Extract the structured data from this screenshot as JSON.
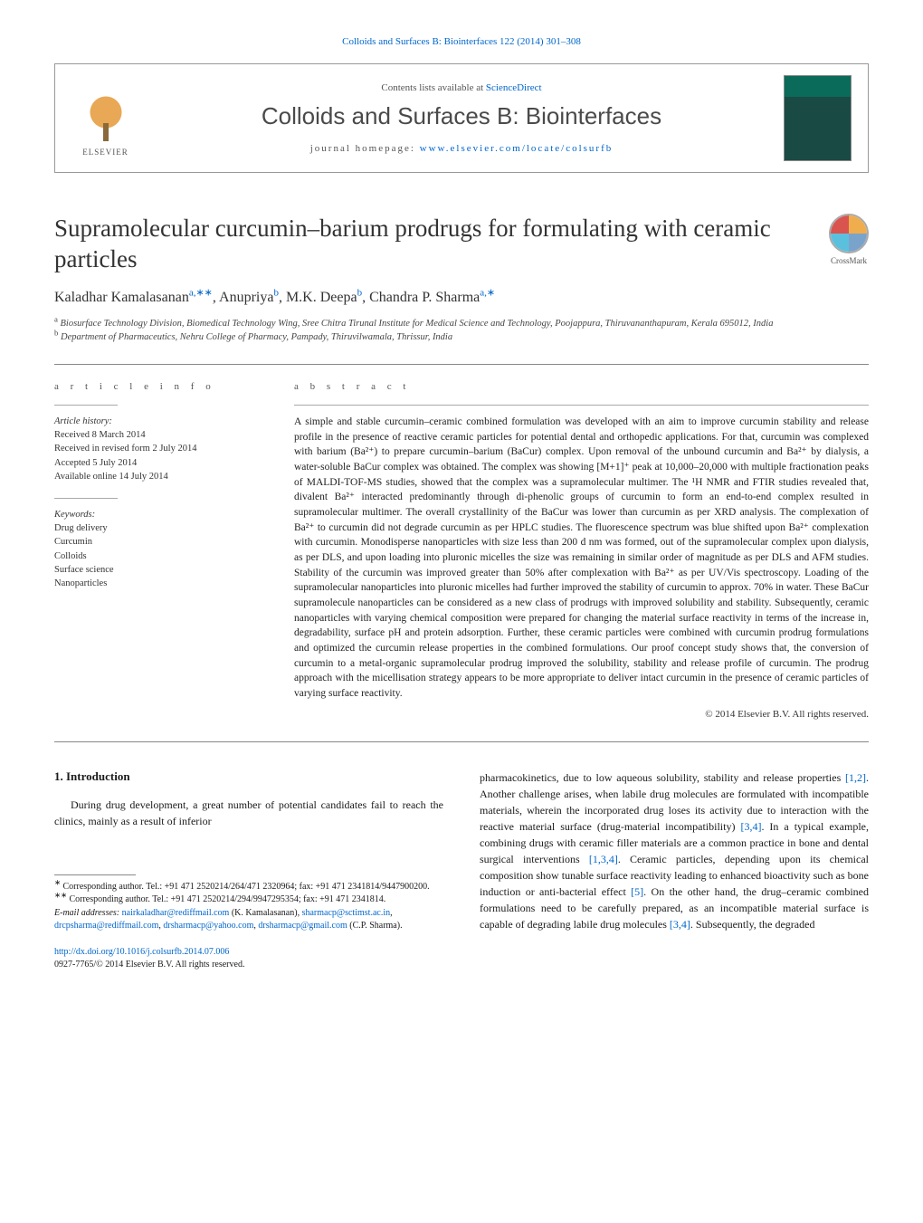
{
  "citation": "Colloids and Surfaces B: Biointerfaces 122 (2014) 301–308",
  "header": {
    "contents_prefix": "Contents lists available at ",
    "contents_link": "ScienceDirect",
    "journal_name": "Colloids and Surfaces B: Biointerfaces",
    "homepage_prefix": "journal homepage: ",
    "homepage_link": "www.elsevier.com/locate/colsurfb",
    "elsevier_label": "ELSEVIER"
  },
  "title": "Supramolecular curcumin–barium prodrugs for formulating with ceramic particles",
  "crossmark_label": "CrossMark",
  "authors_html": "Kaladhar Kamalasanan<sup>a,∗∗</sup>, Anupriya<sup>b</sup>, M.K. Deepa<sup>b</sup>, Chandra P. Sharma<sup>a,∗</sup>",
  "affiliations": {
    "a": "Biosurface Technology Division, Biomedical Technology Wing, Sree Chitra Tirunal Institute for Medical Science and Technology, Poojappura, Thiruvananthapuram, Kerala 695012, India",
    "b": "Department of Pharmaceutics, Nehru College of Pharmacy, Pampady, Thiruvilwamala, Thrissur, India"
  },
  "article_info": {
    "label": "a r t i c l e    i n f o",
    "history_heading": "Article history:",
    "history": [
      "Received 8 March 2014",
      "Received in revised form 2 July 2014",
      "Accepted 5 July 2014",
      "Available online 14 July 2014"
    ],
    "keywords_heading": "Keywords:",
    "keywords": [
      "Drug delivery",
      "Curcumin",
      "Colloids",
      "Surface science",
      "Nanoparticles"
    ]
  },
  "abstract": {
    "label": "a b s t r a c t",
    "text": "A simple and stable curcumin–ceramic combined formulation was developed with an aim to improve curcumin stability and release profile in the presence of reactive ceramic particles for potential dental and orthopedic applications. For that, curcumin was complexed with barium (Ba²⁺) to prepare curcumin–barium (BaCur) complex. Upon removal of the unbound curcumin and Ba²⁺ by dialysis, a water-soluble BaCur complex was obtained. The complex was showing [M+1]⁺ peak at 10,000–20,000 with multiple fractionation peaks of MALDI-TOF-MS studies, showed that the complex was a supramolecular multimer. The ¹H NMR and FTIR studies revealed that, divalent Ba²⁺ interacted predominantly through di-phenolic groups of curcumin to form an end-to-end complex resulted in supramolecular multimer. The overall crystallinity of the BaCur was lower than curcumin as per XRD analysis. The complexation of Ba²⁺ to curcumin did not degrade curcumin as per HPLC studies. The fluorescence spectrum was blue shifted upon Ba²⁺ complexation with curcumin. Monodisperse nanoparticles with size less than 200 d nm was formed, out of the supramolecular complex upon dialysis, as per DLS, and upon loading into pluronic micelles the size was remaining in similar order of magnitude as per DLS and AFM studies. Stability of the curcumin was improved greater than 50% after complexation with Ba²⁺ as per UV/Vis spectroscopy. Loading of the supramolecular nanoparticles into pluronic micelles had further improved the stability of curcumin to approx. 70% in water. These BaCur supramolecule nanoparticles can be considered as a new class of prodrugs with improved solubility and stability. Subsequently, ceramic nanoparticles with varying chemical composition were prepared for changing the material surface reactivity in terms of the increase in, degradability, surface pH and protein adsorption. Further, these ceramic particles were combined with curcumin prodrug formulations and optimized the curcumin release properties in the combined formulations. Our proof concept study shows that, the conversion of curcumin to a metal-organic supramolecular prodrug improved the solubility, stability and release profile of curcumin. The prodrug approach with the micellisation strategy appears to be more appropriate to deliver intact curcumin in the presence of ceramic particles of varying surface reactivity.",
    "copyright": "© 2014 Elsevier B.V. All rights reserved."
  },
  "intro": {
    "heading": "1.  Introduction",
    "col1": "During drug development, a great number of potential candidates fail to reach the clinics, mainly as a result of inferior",
    "col2_parts": [
      {
        "t": "text",
        "v": "pharmacokinetics, due to low aqueous solubility, stability and release properties "
      },
      {
        "t": "link",
        "v": "[1,2]"
      },
      {
        "t": "text",
        "v": ". Another challenge arises, when labile drug molecules are formulated with incompatible materials, wherein the incorporated drug loses its activity due to interaction with the reactive material surface (drug-material incompatibility) "
      },
      {
        "t": "link",
        "v": "[3,4]"
      },
      {
        "t": "text",
        "v": ". In a typical example, combining drugs with ceramic filler materials are a common practice in bone and dental surgical interventions "
      },
      {
        "t": "link",
        "v": "[1,3,4]"
      },
      {
        "t": "text",
        "v": ". Ceramic particles, depending upon its chemical composition show tunable surface reactivity leading to enhanced bioactivity such as bone induction or anti-bacterial effect "
      },
      {
        "t": "link",
        "v": "[5]"
      },
      {
        "t": "text",
        "v": ". On the other hand, the drug–ceramic combined formulations need to be carefully prepared, as an incompatible material surface is capable of degrading labile drug molecules "
      },
      {
        "t": "link",
        "v": "[3,4]"
      },
      {
        "t": "text",
        "v": ". Subsequently, the degraded"
      }
    ]
  },
  "footnotes": {
    "star": "Corresponding author. Tel.: +91 471 2520214/264/471 2320964; fax: +91 471 2341814/9447900200.",
    "dblstar": "Corresponding author. Tel.: +91 471 2520214/294/9947295354; fax: +91 471 2341814.",
    "emails_label": "E-mail addresses: ",
    "emails": [
      {
        "addr": "nairkaladhar@rediffmail.com",
        "who": " (K. Kamalasanan), "
      },
      {
        "addr": "sharmacp@sctimst.ac.in",
        "who": ", "
      },
      {
        "addr": "drcpsharma@rediffmail.com",
        "who": ", "
      },
      {
        "addr": "drsharmacp@yahoo.com",
        "who": ", "
      },
      {
        "addr": "drsharmacp@gmail.com",
        "who": " (C.P. Sharma)."
      }
    ]
  },
  "doi": {
    "url": "http://dx.doi.org/10.1016/j.colsurfb.2014.07.006",
    "issn_line": "0927-7765/© 2014 Elsevier B.V. All rights reserved."
  },
  "colors": {
    "link": "#0066cc",
    "text": "#1a1a1a",
    "muted": "#555555",
    "rule": "#888888"
  }
}
